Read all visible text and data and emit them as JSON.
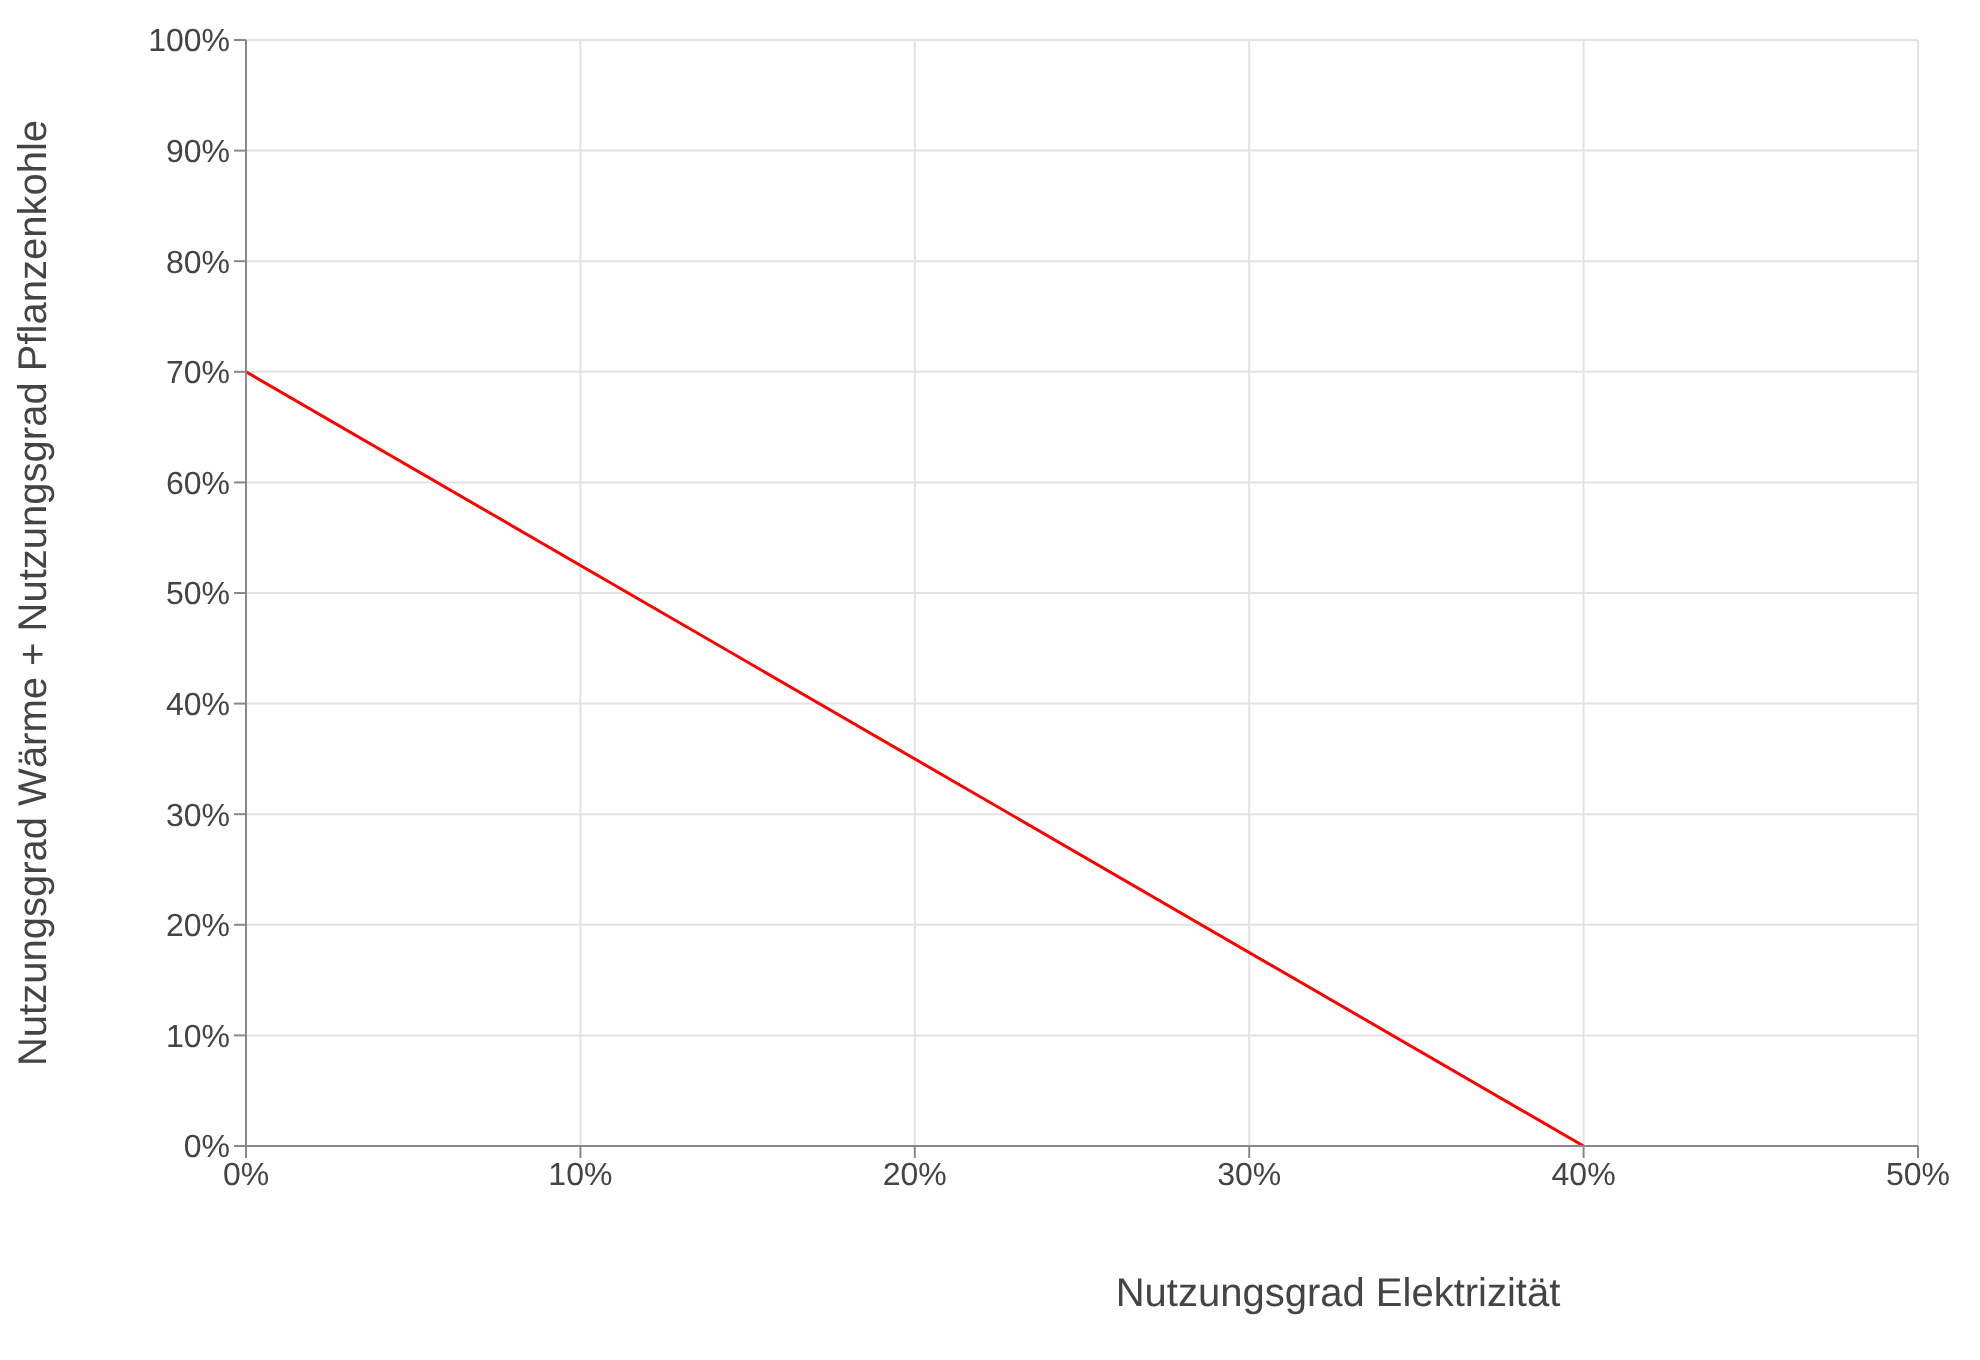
{
  "chart_data": {
    "type": "line",
    "xlabel": "Nutzungsgrad Elektrizität",
    "ylabel": "Nutzungsgrad Wärme + Nutzungsgrad Pflanzenkohle",
    "x": [
      0,
      40
    ],
    "series": [
      {
        "color": "#ff0000",
        "values": [
          70,
          0
        ]
      }
    ],
    "xlim": [
      0,
      50
    ],
    "xticks": [
      {
        "value": 0,
        "label": "0%"
      },
      {
        "value": 10,
        "label": "10%"
      },
      {
        "value": 20,
        "label": "20%"
      },
      {
        "value": 30,
        "label": "30%"
      },
      {
        "value": 40,
        "label": "40%"
      },
      {
        "value": 50,
        "label": "50%"
      }
    ],
    "ylim": [
      0,
      100
    ],
    "yticks": [
      {
        "value": 0,
        "label": "0%"
      },
      {
        "value": 10,
        "label": "10%"
      },
      {
        "value": 20,
        "label": "20%"
      },
      {
        "value": 30,
        "label": "30%"
      },
      {
        "value": 40,
        "label": "40%"
      },
      {
        "value": 50,
        "label": "50%"
      },
      {
        "value": 60,
        "label": "60%"
      },
      {
        "value": 70,
        "label": "70%"
      },
      {
        "value": 80,
        "label": "80%"
      },
      {
        "value": 90,
        "label": "90%"
      },
      {
        "value": 100,
        "label": "100%"
      }
    ],
    "grid": true,
    "marker": "none",
    "line_style": "solid",
    "legend": false
  }
}
